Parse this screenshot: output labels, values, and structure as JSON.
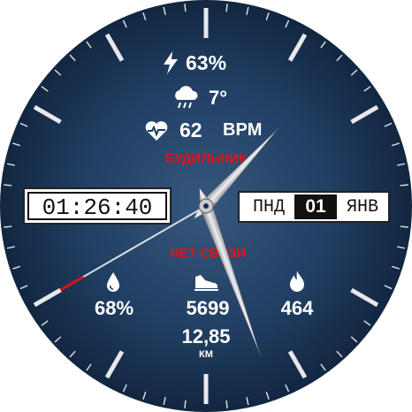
{
  "status": {
    "battery": "63%",
    "temperature": "7°",
    "heart_rate": "62",
    "heart_unit": "BPM"
  },
  "alerts": {
    "alarm_label": "БУДИЛЬНИК",
    "connection_label": "НЕТ СВЯЗИ"
  },
  "time_box": {
    "time": "01:26:40"
  },
  "date_box": {
    "weekday": "ПНД",
    "day": "01",
    "month": "ЯНВ"
  },
  "metrics": {
    "humidity": "68%",
    "steps": "5699",
    "calories": "464",
    "distance": "12,85",
    "distance_unit": "КМ"
  },
  "icons": {
    "battery": "lightning-bolt-icon",
    "weather": "rain-cloud-icon",
    "heart": "heart-pulse-icon",
    "humidity": "water-drop-icon",
    "steps": "shoe-icon",
    "calories": "flame-icon"
  },
  "colors": {
    "dial": "#1d3a5e",
    "accent_red": "#e31212",
    "hands": "#c9cdd2"
  },
  "hands": {
    "hour": 1,
    "minute": 26,
    "second": 40
  }
}
